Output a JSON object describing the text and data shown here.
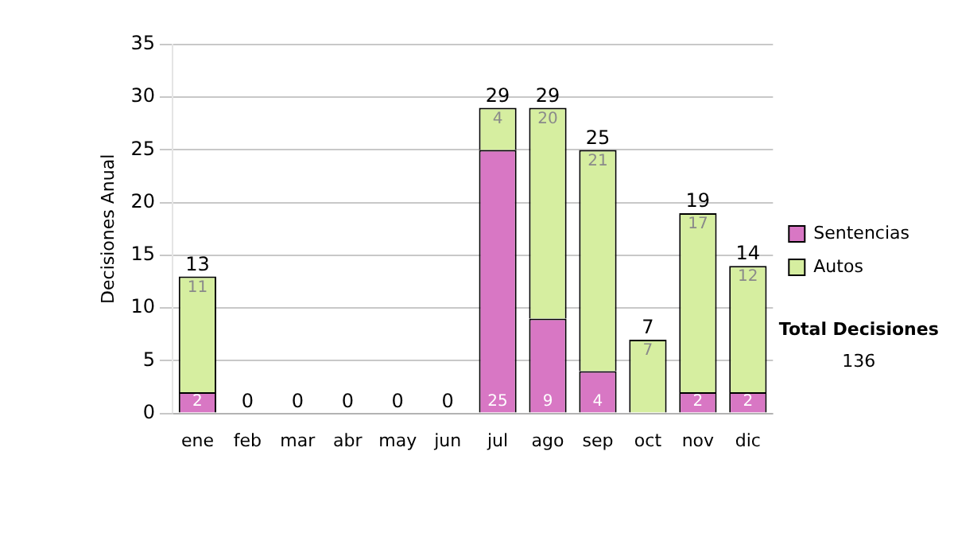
{
  "chart_data": {
    "type": "bar",
    "stacked": true,
    "ylabel": "Decisiones Anual",
    "categories": [
      "ene",
      "feb",
      "mar",
      "abr",
      "may",
      "jun",
      "jul",
      "ago",
      "sep",
      "oct",
      "nov",
      "dic"
    ],
    "series": [
      {
        "name": "Sentencias",
        "color": "#d877c4",
        "values": [
          2,
          0,
          0,
          0,
          0,
          0,
          25,
          9,
          4,
          0,
          2,
          2
        ],
        "value_labels": [
          "2",
          null,
          null,
          null,
          null,
          null,
          "25",
          "9",
          "4",
          null,
          "2",
          "2"
        ]
      },
      {
        "name": "Autos",
        "color": "#d6eea0",
        "values": [
          11,
          0,
          0,
          0,
          0,
          0,
          4,
          20,
          21,
          7,
          17,
          12
        ],
        "value_labels": [
          "11",
          null,
          null,
          null,
          null,
          null,
          "4",
          "20",
          "21",
          "7",
          "17",
          "12"
        ]
      }
    ],
    "totals": [
      "13",
      "0",
      "0",
      "0",
      "0",
      "0",
      "29",
      "29",
      "25",
      "7",
      "19",
      "14"
    ],
    "ylim": [
      0,
      35
    ],
    "yticks": [
      0,
      5,
      10,
      15,
      20,
      25,
      30,
      35
    ],
    "grid": "y",
    "legend": "right",
    "annotations": [
      "Total Decisiones",
      "136"
    ]
  }
}
